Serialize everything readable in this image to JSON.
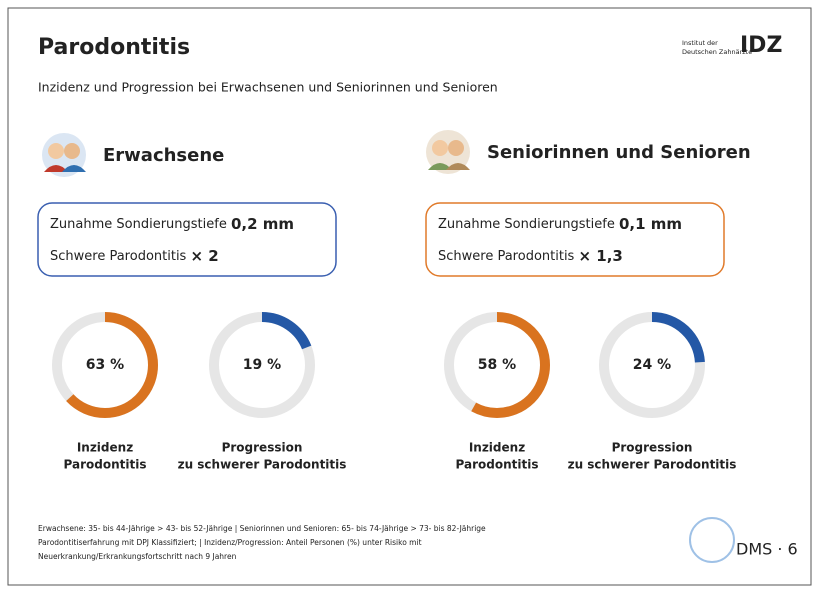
{
  "header": {
    "title": "Parodontitis",
    "subtitle": "Inzidenz und Progression bei Erwachsenen und Seniorinnen und Senioren"
  },
  "logo": {
    "institute_lines": [
      "Institut der",
      "Deutschen Zahnärzte"
    ],
    "mark": "IDZ"
  },
  "groups": [
    {
      "title": "Erwachsene",
      "border_color": "#3a5fb0",
      "box_lines": [
        {
          "text": "Zunahme Sondierungstiefe",
          "value": "0,2 mm"
        },
        {
          "text": "Schwere Parodontitis",
          "value": "× 2"
        }
      ],
      "donuts": [
        {
          "value": 63,
          "value_label": "63 %",
          "color": "#d9731f",
          "label_lines": [
            "Inzidenz",
            "Parodontitis"
          ]
        },
        {
          "value": 19,
          "value_label": "19 %",
          "color": "#2458a6",
          "label_lines": [
            "Progression",
            "zu schwerer Parodontitis"
          ]
        }
      ]
    },
    {
      "title": "Seniorinnen und Senioren",
      "border_color": "#e07a2a",
      "box_lines": [
        {
          "text": "Zunahme Sondierungstiefe",
          "value": "0,1 mm"
        },
        {
          "text": "Schwere Parodontitis",
          "value": "× 1,3"
        }
      ],
      "donuts": [
        {
          "value": 58,
          "value_label": "58 %",
          "color": "#d9731f",
          "label_lines": [
            "Inzidenz",
            "Parodontitis"
          ]
        },
        {
          "value": 24,
          "value_label": "24 %",
          "color": "#2458a6",
          "label_lines": [
            "Progression",
            "zu schwerer Parodontitis"
          ]
        }
      ]
    }
  ],
  "footer": {
    "lines": [
      "Erwachsene: 35- bis 44-Jährige > 43- bis 52-Jährige | Seniorinnen und Senioren: 65- bis 74-Jährige > 73- bis 82-Jährige",
      "Parodontitiserfahrung mit DPJ Klassifiziert; | Inzidenz/Progression: Anteil Personen (%) unter Risiko mit",
      "Neuerkrankung/Erkrankungsfortschritt nach 9 Jahren"
    ],
    "study": "DMS · 6"
  }
}
